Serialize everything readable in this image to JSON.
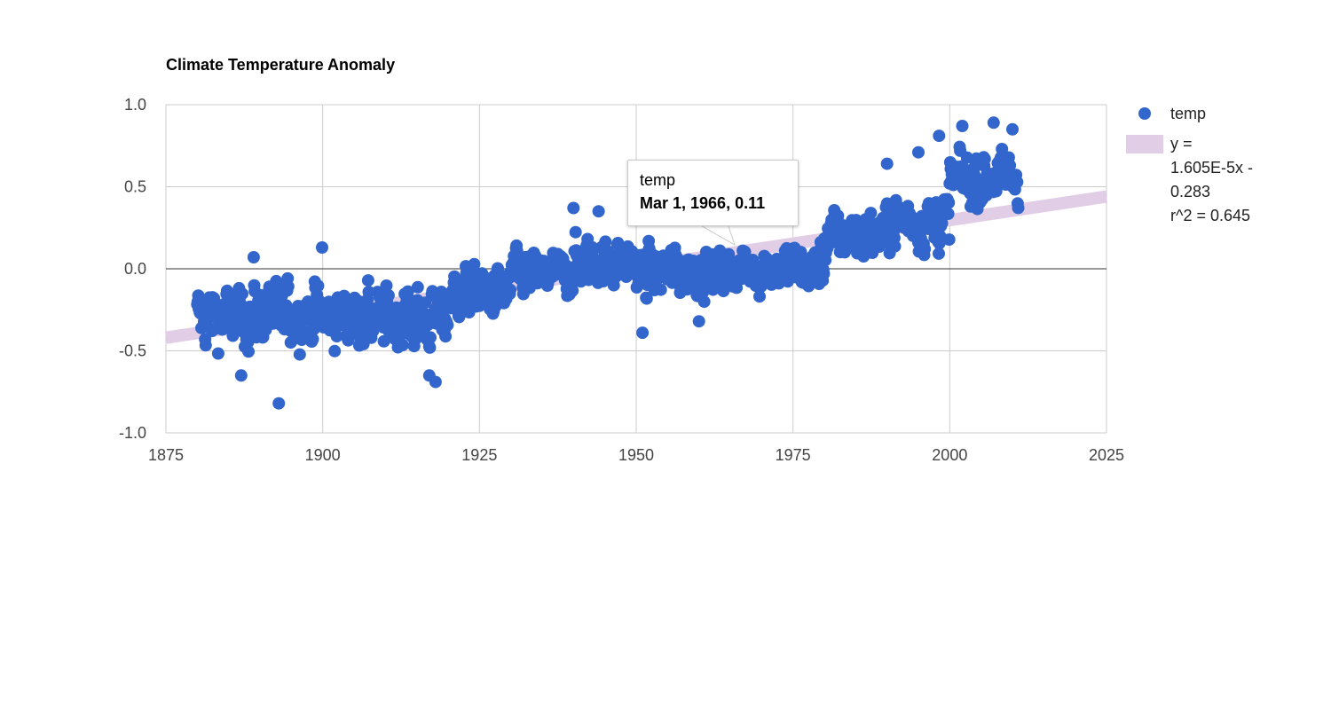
{
  "chart_data": {
    "type": "scatter",
    "title": "Climate Temperature Anomaly",
    "xlim": [
      1875,
      2025
    ],
    "ylim": [
      -1.0,
      1.0
    ],
    "x_ticks": [
      "1875",
      "1900",
      "1925",
      "1950",
      "1975",
      "2000",
      "2025"
    ],
    "y_ticks": [
      "1.0",
      "0.5",
      "0.0",
      "-0.5",
      "-1.0"
    ],
    "grid": true,
    "legend_position": "right",
    "series": [
      {
        "name": "temp",
        "color": "#3366cc",
        "x_range": [
          1880,
          2011
        ],
        "y_range_observed": [
          -0.82,
          0.89
        ],
        "segments": [
          {
            "start": 1880,
            "end": 1890,
            "mean": -0.29,
            "spread": 0.16
          },
          {
            "start": 1890,
            "end": 1900,
            "mean": -0.27,
            "spread": 0.17
          },
          {
            "start": 1900,
            "end": 1910,
            "mean": -0.3,
            "spread": 0.15
          },
          {
            "start": 1910,
            "end": 1920,
            "mean": -0.3,
            "spread": 0.16
          },
          {
            "start": 1920,
            "end": 1930,
            "mean": -0.15,
            "spread": 0.13
          },
          {
            "start": 1930,
            "end": 1940,
            "mean": -0.03,
            "spread": 0.12
          },
          {
            "start": 1940,
            "end": 1950,
            "mean": 0.04,
            "spread": 0.13
          },
          {
            "start": 1950,
            "end": 1960,
            "mean": -0.02,
            "spread": 0.13
          },
          {
            "start": 1960,
            "end": 1970,
            "mean": -0.01,
            "spread": 0.12
          },
          {
            "start": 1970,
            "end": 1980,
            "mean": 0.0,
            "spread": 0.13
          },
          {
            "start": 1980,
            "end": 1990,
            "mean": 0.2,
            "spread": 0.14
          },
          {
            "start": 1990,
            "end": 2000,
            "mean": 0.3,
            "spread": 0.15
          },
          {
            "start": 2000,
            "end": 2011,
            "mean": 0.55,
            "spread": 0.14
          }
        ],
        "notable_points": [
          {
            "x": 1893,
            "y": -0.82
          },
          {
            "x": 1887,
            "y": -0.65
          },
          {
            "x": 1918,
            "y": -0.69
          },
          {
            "x": 1917,
            "y": -0.65
          },
          {
            "x": 1899.9,
            "y": 0.13
          },
          {
            "x": 1889,
            "y": 0.07
          },
          {
            "x": 1940,
            "y": 0.37
          },
          {
            "x": 1944,
            "y": 0.35
          },
          {
            "x": 1960,
            "y": -0.32
          },
          {
            "x": 1951,
            "y": -0.39
          },
          {
            "x": 1990,
            "y": 0.64
          },
          {
            "x": 1998.3,
            "y": 0.81
          },
          {
            "x": 2002,
            "y": 0.87
          },
          {
            "x": 2007,
            "y": 0.89
          },
          {
            "x": 2010,
            "y": 0.85
          },
          {
            "x": 1995,
            "y": 0.71
          }
        ]
      },
      {
        "name": "y = 1.605E-5x - 0.283 r^2 = 0.645",
        "type": "trendline",
        "color": "#e2cde6",
        "endpoints": [
          [
            1875,
            -0.42
          ],
          [
            2025,
            0.44
          ]
        ]
      }
    ]
  },
  "legend": {
    "items": [
      {
        "label": "temp"
      },
      {
        "label_lines": [
          "y =",
          "1.605E-5x -",
          "0.283",
          "r^2 = 0.645"
        ]
      }
    ]
  },
  "tooltip": {
    "series": "temp",
    "value": "Mar 1, 1966, 0.11"
  }
}
